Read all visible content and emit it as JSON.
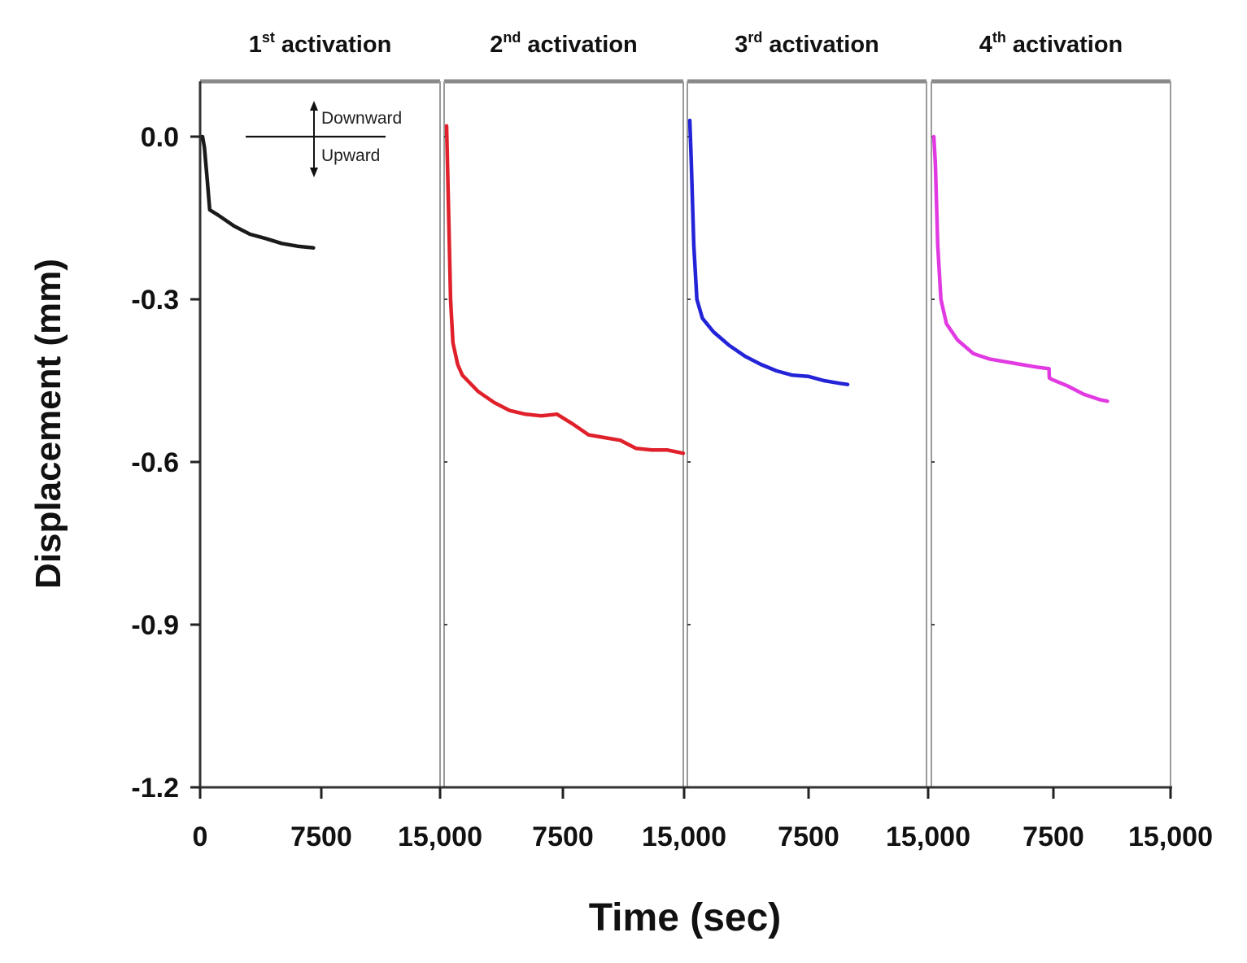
{
  "chart_data": {
    "type": "line",
    "xlabel": "Time (sec)",
    "ylabel": "Displacement (mm)",
    "ylim": [
      -1.2,
      0.1
    ],
    "yticks": [
      0.0,
      -0.3,
      -0.6,
      -0.9,
      -1.2
    ],
    "ytick_labels": [
      "0.0",
      "-0.3",
      "-0.6",
      "-0.9",
      "-1.2"
    ],
    "xlim": [
      0,
      15000
    ],
    "xtick_labels": [
      "0",
      "7500",
      "15,000",
      "7500",
      "15,000",
      "7500",
      "15,000",
      "7500",
      "15,000"
    ],
    "annotation": {
      "up_label": "Downward",
      "down_label": "Upward"
    },
    "panels": [
      {
        "title_num": "1",
        "title_sup": "st",
        "title_rest": " activation",
        "color": "#1a1a1a",
        "series": {
          "name": "1st activation",
          "x": [
            0,
            120,
            300,
            450,
            1000,
            2000,
            3000,
            4000,
            5000,
            6000,
            7000
          ],
          "y": [
            0.0,
            -0.02,
            -0.08,
            -0.135,
            -0.145,
            -0.165,
            -0.18,
            -0.188,
            -0.197,
            -0.202,
            -0.205
          ]
        }
      },
      {
        "title_num": "2",
        "title_sup": "nd",
        "title_rest": " activation",
        "color": "#e0202a",
        "series": {
          "name": "2nd activation",
          "x": [
            0,
            100,
            250,
            400,
            700,
            1000,
            2000,
            3000,
            4000,
            5000,
            6000,
            7000,
            8000,
            9000,
            10000,
            11000,
            12000,
            13000,
            14000,
            15000
          ],
          "y": [
            0.02,
            -0.1,
            -0.3,
            -0.38,
            -0.42,
            -0.44,
            -0.47,
            -0.49,
            -0.505,
            -0.512,
            -0.515,
            -0.512,
            -0.53,
            -0.55,
            -0.555,
            -0.56,
            -0.575,
            -0.578,
            -0.578,
            -0.584
          ]
        }
      },
      {
        "title_num": "3",
        "title_sup": "rd",
        "title_rest": " activation",
        "color": "#2323d8",
        "series": {
          "name": "3rd activation",
          "x": [
            0,
            100,
            250,
            450,
            800,
            1500,
            2500,
            3500,
            4500,
            5500,
            6500,
            7500,
            8500,
            9500,
            10000
          ],
          "y": [
            0.03,
            -0.05,
            -0.2,
            -0.3,
            -0.335,
            -0.36,
            -0.385,
            -0.405,
            -0.42,
            -0.432,
            -0.44,
            -0.442,
            -0.45,
            -0.455,
            -0.457
          ]
        }
      },
      {
        "title_num": "4",
        "title_sup": "th",
        "title_rest": " activation",
        "color": "#e23ae2",
        "series": {
          "name": "4th activation",
          "x": [
            0,
            100,
            250,
            450,
            800,
            1500,
            2500,
            3500,
            4500,
            5500,
            6500,
            7300,
            7320,
            7500,
            8500,
            9500,
            10500,
            11000
          ],
          "y": [
            0.0,
            -0.05,
            -0.2,
            -0.3,
            -0.345,
            -0.375,
            -0.4,
            -0.41,
            -0.415,
            -0.42,
            -0.425,
            -0.428,
            -0.445,
            -0.448,
            -0.46,
            -0.475,
            -0.485,
            -0.488
          ]
        }
      }
    ]
  }
}
